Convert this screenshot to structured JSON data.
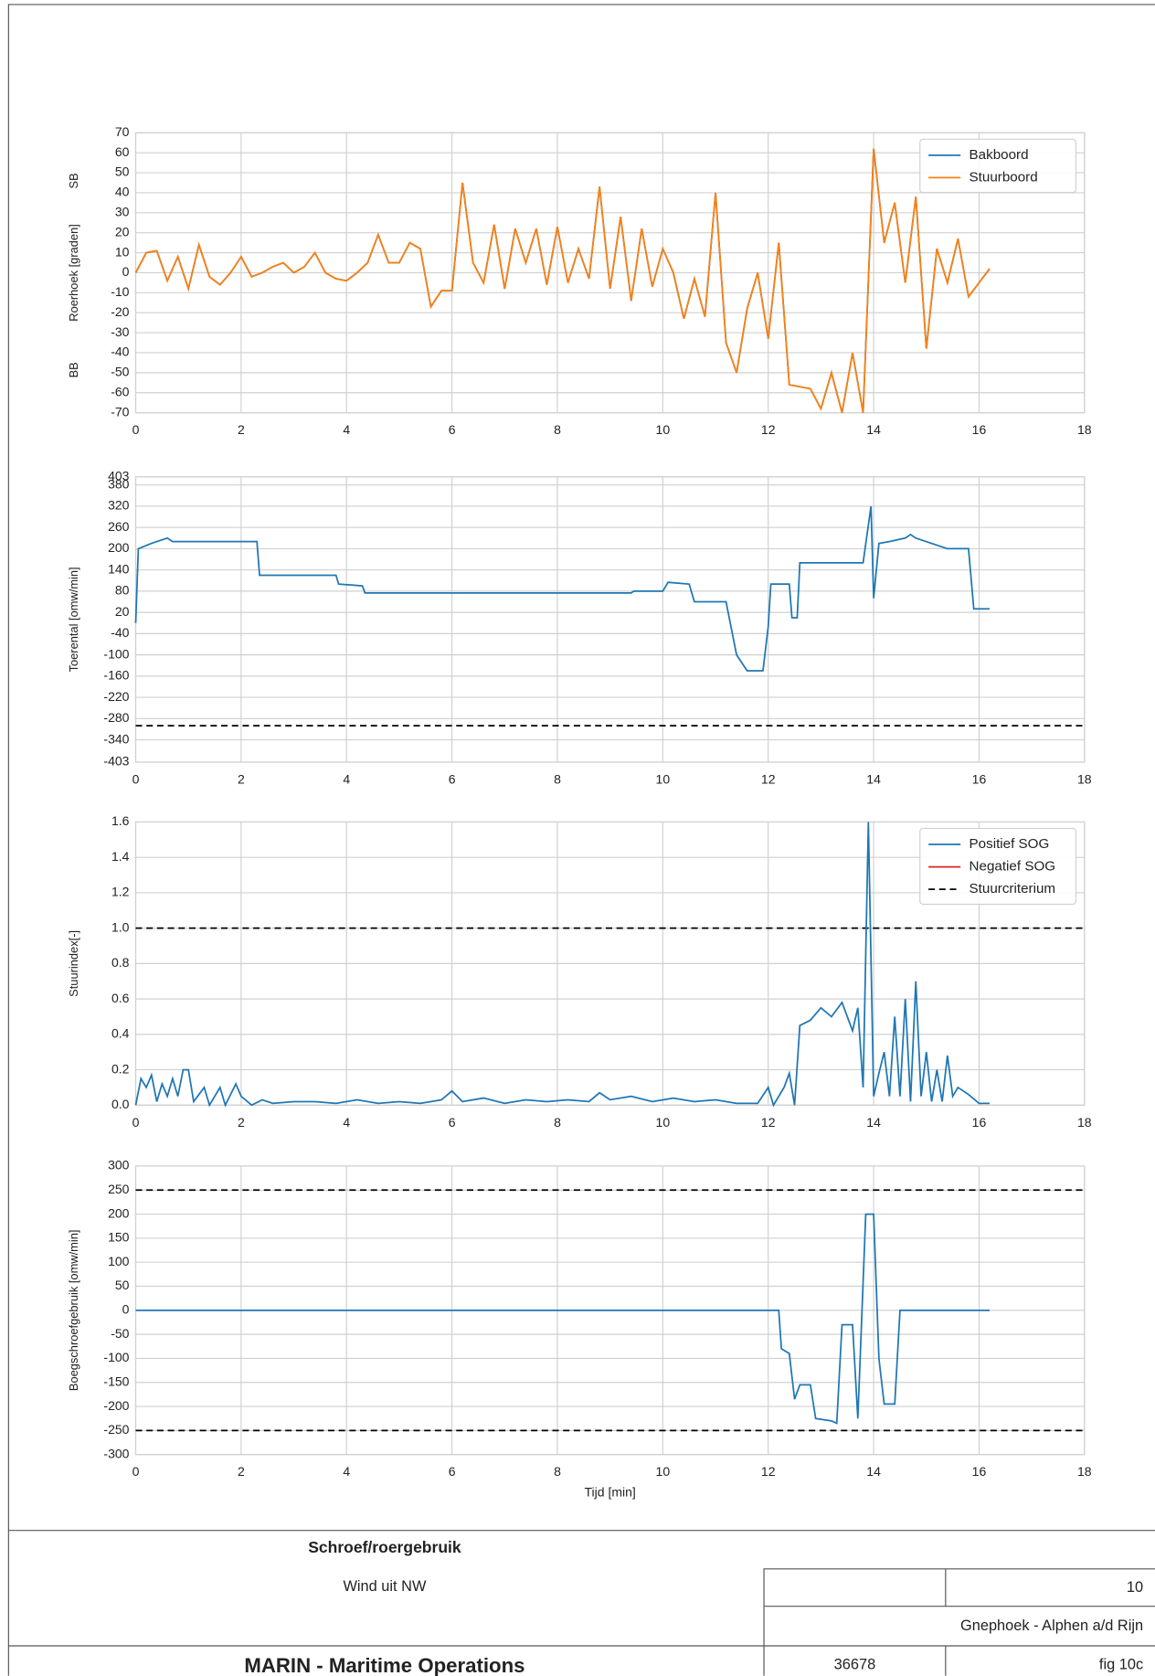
{
  "chart_data": [
    {
      "type": "line",
      "ylabel": "Roerhoek [graden]",
      "ylabel_top": "SB",
      "ylabel_bottom": "BB",
      "legend": "upper right",
      "grid": true,
      "xlim": [
        0,
        18
      ],
      "xticks": [
        0,
        2,
        4,
        6,
        8,
        10,
        12,
        14,
        16,
        18
      ],
      "ylim": [
        -70,
        70
      ],
      "yticks": [
        -70,
        -60,
        -50,
        -40,
        -30,
        -20,
        -10,
        0,
        10,
        20,
        30,
        40,
        50,
        60,
        70
      ],
      "x": [
        0,
        0.2,
        0.4,
        0.6,
        0.8,
        1,
        1.2,
        1.4,
        1.6,
        1.8,
        2,
        2.2,
        2.4,
        2.6,
        2.8,
        3,
        3.2,
        3.4,
        3.6,
        3.8,
        4,
        4.2,
        4.4,
        4.6,
        4.8,
        5,
        5.2,
        5.4,
        5.6,
        5.8,
        6,
        6.2,
        6.4,
        6.6,
        6.8,
        7,
        7.2,
        7.4,
        7.6,
        7.8,
        8,
        8.2,
        8.4,
        8.6,
        8.8,
        9,
        9.2,
        9.4,
        9.6,
        9.8,
        10,
        10.2,
        10.4,
        10.6,
        10.8,
        11,
        11.2,
        11.4,
        11.6,
        11.8,
        12,
        12.2,
        12.4,
        12.6,
        12.8,
        13,
        13.2,
        13.4,
        13.6,
        13.8,
        14,
        14.2,
        14.4,
        14.6,
        14.8,
        15,
        15.2,
        15.4,
        15.6,
        15.8,
        16,
        16.2
      ],
      "series": [
        {
          "name": "Bakboord",
          "color": "#1f77b4",
          "values": [
            0,
            10,
            11,
            -4,
            8,
            -8,
            14,
            -2,
            -6,
            0,
            8,
            -2,
            0,
            3,
            5,
            0,
            3,
            10,
            0,
            -3,
            -4,
            0,
            5,
            19,
            5,
            5,
            15,
            12,
            -17,
            -9,
            -9,
            45,
            5,
            -5,
            24,
            -8,
            22,
            5,
            22,
            -6,
            23,
            -5,
            12,
            -3,
            43,
            -8,
            28,
            -14,
            22,
            -7,
            12,
            0,
            -23,
            -3,
            -22,
            40,
            -35,
            -50,
            -18,
            0,
            -33,
            15,
            -56,
            -57,
            -58,
            -68,
            -50,
            -70,
            -40,
            -70,
            62,
            15,
            35,
            -5,
            38,
            -38,
            12,
            -5,
            17,
            -12,
            -5,
            2
          ]
        },
        {
          "name": "Stuurboord",
          "color": "#ff7f0e",
          "values": [
            0,
            10,
            11,
            -4,
            8,
            -8,
            14,
            -2,
            -6,
            0,
            8,
            -2,
            0,
            3,
            5,
            0,
            3,
            10,
            0,
            -3,
            -4,
            0,
            5,
            19,
            5,
            5,
            15,
            12,
            -17,
            -9,
            -9,
            45,
            5,
            -5,
            24,
            -8,
            22,
            5,
            22,
            -6,
            23,
            -5,
            12,
            -3,
            43,
            -8,
            28,
            -14,
            22,
            -7,
            12,
            0,
            -23,
            -3,
            -22,
            40,
            -35,
            -50,
            -18,
            0,
            -33,
            15,
            -56,
            -57,
            -58,
            -68,
            -50,
            -70,
            -40,
            -70,
            62,
            15,
            35,
            -5,
            38,
            -38,
            12,
            -5,
            17,
            -12,
            -5,
            2
          ]
        }
      ]
    },
    {
      "type": "line",
      "ylabel": "Toerental [omw/min]",
      "grid": true,
      "xlim": [
        0,
        18
      ],
      "xticks": [
        0,
        2,
        4,
        6,
        8,
        10,
        12,
        14,
        16,
        18
      ],
      "ylim": [
        -403,
        403
      ],
      "yticks": [
        -403,
        -340,
        -280,
        -220,
        -160,
        -100,
        -40,
        20,
        80,
        140,
        200,
        260,
        320,
        380,
        403
      ],
      "reference_lines": [
        {
          "value": -300,
          "color": "#000000"
        }
      ],
      "x": [
        0,
        0.05,
        0.3,
        0.6,
        0.7,
        2.3,
        2.35,
        3.8,
        3.85,
        4.3,
        4.35,
        9.4,
        9.45,
        10,
        10.1,
        10.5,
        10.6,
        11.2,
        11.4,
        11.6,
        11.9,
        12,
        12.05,
        12.4,
        12.45,
        12.55,
        12.6,
        13.8,
        13.95,
        14,
        14.1,
        14.3,
        14.6,
        14.7,
        14.8,
        15.4,
        15.8,
        15.9,
        16.2
      ],
      "series": [
        {
          "color": "#1f77b4",
          "values": [
            -10,
            200,
            215,
            230,
            220,
            220,
            125,
            125,
            100,
            95,
            75,
            75,
            80,
            80,
            105,
            100,
            50,
            50,
            -100,
            -145,
            -145,
            -20,
            100,
            100,
            5,
            5,
            160,
            160,
            320,
            60,
            215,
            220,
            230,
            240,
            230,
            200,
            200,
            30,
            30
          ]
        }
      ]
    },
    {
      "type": "line",
      "ylabel": "Stuurindex[-]",
      "legend": "upper right",
      "grid": true,
      "xlim": [
        0,
        18
      ],
      "xticks": [
        0,
        2,
        4,
        6,
        8,
        10,
        12,
        14,
        16,
        18
      ],
      "ylim": [
        0,
        1.6
      ],
      "yticks": [
        {
          "value": 0,
          "label": "0.0"
        },
        {
          "value": 0.2,
          "label": "0.2"
        },
        {
          "value": 0.4,
          "label": "0.4"
        },
        {
          "value": 0.6,
          "label": "0.6"
        },
        {
          "value": 0.8,
          "label": "0.8"
        },
        {
          "value": 1,
          "label": "1.0"
        },
        {
          "value": 1.2,
          "label": "1.2"
        },
        {
          "value": 1.4,
          "label": "1.4"
        },
        {
          "value": 1.6,
          "label": "1.6"
        }
      ],
      "reference_lines": [
        {
          "name": "Stuurcriterium",
          "value": 1,
          "color": "#000000"
        }
      ],
      "x": [
        0,
        0.1,
        0.2,
        0.3,
        0.4,
        0.5,
        0.6,
        0.7,
        0.8,
        0.9,
        1,
        1.1,
        1.3,
        1.4,
        1.6,
        1.7,
        1.9,
        2,
        2.2,
        2.4,
        2.6,
        3,
        3.4,
        3.8,
        4.2,
        4.6,
        5,
        5.4,
        5.8,
        6,
        6.2,
        6.6,
        7,
        7.4,
        7.8,
        8.2,
        8.6,
        8.8,
        9,
        9.4,
        9.8,
        10.2,
        10.6,
        11,
        11.4,
        11.8,
        12,
        12.1,
        12.3,
        12.4,
        12.5,
        12.6,
        12.8,
        13,
        13.2,
        13.4,
        13.6,
        13.7,
        13.8,
        13.9,
        14,
        14.1,
        14.2,
        14.3,
        14.4,
        14.5,
        14.6,
        14.7,
        14.8,
        14.9,
        15,
        15.1,
        15.2,
        15.3,
        15.4,
        15.5,
        15.6,
        15.8,
        16,
        16.2
      ],
      "series": [
        {
          "name": "Positief SOG",
          "color": "#1f77b4",
          "values": [
            0,
            0.15,
            0.1,
            0.17,
            0.02,
            0.12,
            0.05,
            0.15,
            0.05,
            0.2,
            0.2,
            0.02,
            0.1,
            0,
            0.1,
            0,
            0.12,
            0.05,
            0,
            0.03,
            0.01,
            0.02,
            0.02,
            0.01,
            0.03,
            0.01,
            0.02,
            0.01,
            0.03,
            0.08,
            0.02,
            0.04,
            0.01,
            0.03,
            0.02,
            0.03,
            0.02,
            0.07,
            0.03,
            0.05,
            0.02,
            0.04,
            0.02,
            0.03,
            0.01,
            0.01,
            0.1,
            0,
            0.1,
            0.18,
            0,
            0.45,
            0.48,
            0.55,
            0.5,
            0.58,
            0.42,
            0.55,
            0.1,
            1.6,
            0.05,
            0.18,
            0.3,
            0.05,
            0.5,
            0.05,
            0.6,
            0.02,
            0.7,
            0.05,
            0.3,
            0.02,
            0.2,
            0.02,
            0.28,
            0.05,
            0.1,
            0.06,
            0.01,
            0.01
          ]
        },
        {
          "name": "Negatief SOG",
          "color": "#d62728",
          "x": [],
          "values": []
        }
      ]
    },
    {
      "type": "line",
      "ylabel": "Boegschroefgebruik [omw/min]",
      "xlabel": "Tijd [min]",
      "grid": true,
      "xlim": [
        0,
        18
      ],
      "xticks": [
        0,
        2,
        4,
        6,
        8,
        10,
        12,
        14,
        16,
        18
      ],
      "ylim": [
        -300,
        300
      ],
      "yticks": [
        -300,
        -250,
        -200,
        -150,
        -100,
        -50,
        0,
        50,
        100,
        150,
        200,
        250,
        300
      ],
      "reference_lines": [
        {
          "value": 250,
          "color": "#000000"
        },
        {
          "value": -250,
          "color": "#000000"
        }
      ],
      "x": [
        0,
        12.2,
        12.25,
        12.4,
        12.5,
        12.6,
        12.8,
        12.9,
        13.2,
        13.3,
        13.4,
        13.6,
        13.7,
        13.85,
        14,
        14.1,
        14.2,
        14.4,
        14.5,
        16.2
      ],
      "series": [
        {
          "color": "#1f77b4",
          "values": [
            0,
            0,
            -80,
            -90,
            -185,
            -155,
            -155,
            -225,
            -230,
            -235,
            -30,
            -30,
            -225,
            200,
            200,
            -100,
            -195,
            -195,
            0,
            0
          ]
        }
      ]
    }
  ],
  "footer": {
    "title": "Schroef/roergebruik",
    "subtitle": "Wind uit NW",
    "organisation": "MARIN - Maritime Operations",
    "page": "10",
    "location": "Gnephoek - Alphen a/d Rijn",
    "project": "36678",
    "figure": "fig 10c"
  }
}
